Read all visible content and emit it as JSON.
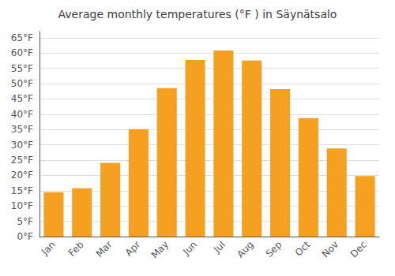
{
  "chart_data": {
    "type": "bar",
    "title": "Average monthly temperatures (°F ) in Säynätsalo",
    "categories": [
      "Jan",
      "Feb",
      "Mar",
      "Apr",
      "May",
      "Jun",
      "Jul",
      "Aug",
      "Sep",
      "Oct",
      "Nov",
      "Dec"
    ],
    "values": [
      14.5,
      15.8,
      24.1,
      35.1,
      48.5,
      57.7,
      60.8,
      57.5,
      48.2,
      38.7,
      28.8,
      19.8
    ],
    "color": "#F5A020",
    "ylim": [
      0,
      67
    ],
    "yticks": [
      {
        "value": 0,
        "label": "0°F"
      },
      {
        "value": 5,
        "label": "5°F"
      },
      {
        "value": 10,
        "label": "10°F"
      },
      {
        "value": 15,
        "label": "15°F"
      },
      {
        "value": 20,
        "label": "20°F"
      },
      {
        "value": 25,
        "label": "25°F"
      },
      {
        "value": 30,
        "label": "30°F"
      },
      {
        "value": 35,
        "label": "35°F"
      },
      {
        "value": 40,
        "label": "40°F"
      },
      {
        "value": 45,
        "label": "45°F"
      },
      {
        "value": 50,
        "label": "50°F"
      },
      {
        "value": 55,
        "label": "55°F"
      },
      {
        "value": 60,
        "label": "60°F"
      },
      {
        "value": 65,
        "label": "65°F"
      }
    ],
    "grid": true
  }
}
